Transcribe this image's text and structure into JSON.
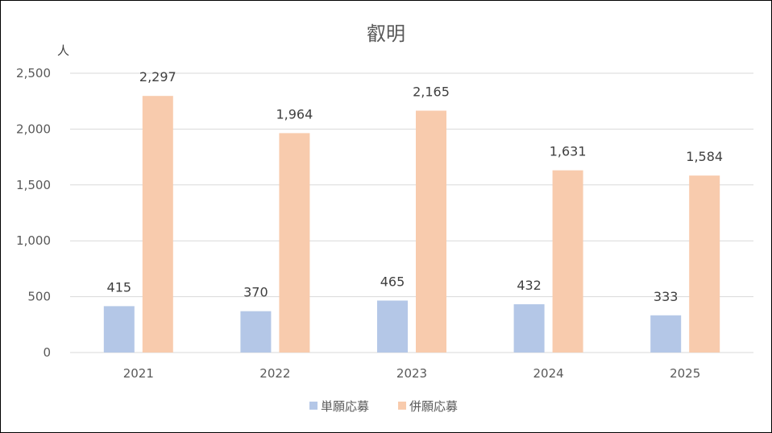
{
  "chart_data": {
    "type": "bar",
    "title": "叡明",
    "ylabel": "人",
    "xlabel": "",
    "categories": [
      "2021",
      "2022",
      "2023",
      "2024",
      "2025"
    ],
    "series": [
      {
        "name": "単願応募",
        "color": "#b4c7e7",
        "values": [
          415,
          370,
          465,
          432,
          333
        ],
        "labels": [
          "415",
          "370",
          "465",
          "432",
          "333"
        ]
      },
      {
        "name": "併願応募",
        "color": "#f8cbad",
        "values": [
          2297,
          1964,
          2165,
          1631,
          1584
        ],
        "labels": [
          "2,297",
          "1,964",
          "2,165",
          "1,631",
          "1,584"
        ]
      }
    ],
    "ylim": [
      0,
      2500
    ],
    "yticks": [
      0,
      500,
      1000,
      1500,
      2000,
      2500
    ],
    "ytick_labels": [
      "0",
      "500",
      "1,000",
      "1,500",
      "2,000",
      "2,500"
    ],
    "grid": true,
    "legend_position": "bottom"
  }
}
